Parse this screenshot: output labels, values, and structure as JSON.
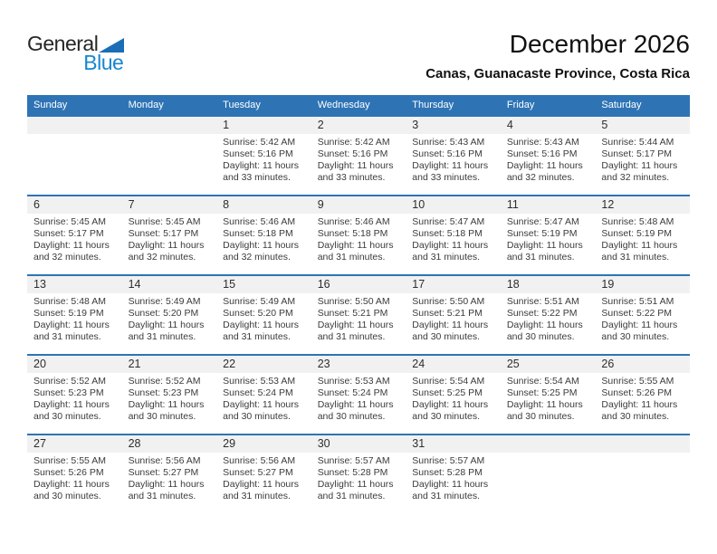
{
  "logo": {
    "line1": "General",
    "line2": "Blue"
  },
  "header": {
    "title": "December 2026",
    "subtitle": "Canas, Guanacaste Province, Costa Rica"
  },
  "calendar": {
    "day_headers": [
      "Sunday",
      "Monday",
      "Tuesday",
      "Wednesday",
      "Thursday",
      "Friday",
      "Saturday"
    ],
    "weeks": [
      [
        null,
        null,
        {
          "day": "1",
          "sunrise": "Sunrise: 5:42 AM",
          "sunset": "Sunset: 5:16 PM",
          "daylight1": "Daylight: 11 hours",
          "daylight2": "and 33 minutes."
        },
        {
          "day": "2",
          "sunrise": "Sunrise: 5:42 AM",
          "sunset": "Sunset: 5:16 PM",
          "daylight1": "Daylight: 11 hours",
          "daylight2": "and 33 minutes."
        },
        {
          "day": "3",
          "sunrise": "Sunrise: 5:43 AM",
          "sunset": "Sunset: 5:16 PM",
          "daylight1": "Daylight: 11 hours",
          "daylight2": "and 33 minutes."
        },
        {
          "day": "4",
          "sunrise": "Sunrise: 5:43 AM",
          "sunset": "Sunset: 5:16 PM",
          "daylight1": "Daylight: 11 hours",
          "daylight2": "and 32 minutes."
        },
        {
          "day": "5",
          "sunrise": "Sunrise: 5:44 AM",
          "sunset": "Sunset: 5:17 PM",
          "daylight1": "Daylight: 11 hours",
          "daylight2": "and 32 minutes."
        }
      ],
      [
        {
          "day": "6",
          "sunrise": "Sunrise: 5:45 AM",
          "sunset": "Sunset: 5:17 PM",
          "daylight1": "Daylight: 11 hours",
          "daylight2": "and 32 minutes."
        },
        {
          "day": "7",
          "sunrise": "Sunrise: 5:45 AM",
          "sunset": "Sunset: 5:17 PM",
          "daylight1": "Daylight: 11 hours",
          "daylight2": "and 32 minutes."
        },
        {
          "day": "8",
          "sunrise": "Sunrise: 5:46 AM",
          "sunset": "Sunset: 5:18 PM",
          "daylight1": "Daylight: 11 hours",
          "daylight2": "and 32 minutes."
        },
        {
          "day": "9",
          "sunrise": "Sunrise: 5:46 AM",
          "sunset": "Sunset: 5:18 PM",
          "daylight1": "Daylight: 11 hours",
          "daylight2": "and 31 minutes."
        },
        {
          "day": "10",
          "sunrise": "Sunrise: 5:47 AM",
          "sunset": "Sunset: 5:18 PM",
          "daylight1": "Daylight: 11 hours",
          "daylight2": "and 31 minutes."
        },
        {
          "day": "11",
          "sunrise": "Sunrise: 5:47 AM",
          "sunset": "Sunset: 5:19 PM",
          "daylight1": "Daylight: 11 hours",
          "daylight2": "and 31 minutes."
        },
        {
          "day": "12",
          "sunrise": "Sunrise: 5:48 AM",
          "sunset": "Sunset: 5:19 PM",
          "daylight1": "Daylight: 11 hours",
          "daylight2": "and 31 minutes."
        }
      ],
      [
        {
          "day": "13",
          "sunrise": "Sunrise: 5:48 AM",
          "sunset": "Sunset: 5:19 PM",
          "daylight1": "Daylight: 11 hours",
          "daylight2": "and 31 minutes."
        },
        {
          "day": "14",
          "sunrise": "Sunrise: 5:49 AM",
          "sunset": "Sunset: 5:20 PM",
          "daylight1": "Daylight: 11 hours",
          "daylight2": "and 31 minutes."
        },
        {
          "day": "15",
          "sunrise": "Sunrise: 5:49 AM",
          "sunset": "Sunset: 5:20 PM",
          "daylight1": "Daylight: 11 hours",
          "daylight2": "and 31 minutes."
        },
        {
          "day": "16",
          "sunrise": "Sunrise: 5:50 AM",
          "sunset": "Sunset: 5:21 PM",
          "daylight1": "Daylight: 11 hours",
          "daylight2": "and 31 minutes."
        },
        {
          "day": "17",
          "sunrise": "Sunrise: 5:50 AM",
          "sunset": "Sunset: 5:21 PM",
          "daylight1": "Daylight: 11 hours",
          "daylight2": "and 30 minutes."
        },
        {
          "day": "18",
          "sunrise": "Sunrise: 5:51 AM",
          "sunset": "Sunset: 5:22 PM",
          "daylight1": "Daylight: 11 hours",
          "daylight2": "and 30 minutes."
        },
        {
          "day": "19",
          "sunrise": "Sunrise: 5:51 AM",
          "sunset": "Sunset: 5:22 PM",
          "daylight1": "Daylight: 11 hours",
          "daylight2": "and 30 minutes."
        }
      ],
      [
        {
          "day": "20",
          "sunrise": "Sunrise: 5:52 AM",
          "sunset": "Sunset: 5:23 PM",
          "daylight1": "Daylight: 11 hours",
          "daylight2": "and 30 minutes."
        },
        {
          "day": "21",
          "sunrise": "Sunrise: 5:52 AM",
          "sunset": "Sunset: 5:23 PM",
          "daylight1": "Daylight: 11 hours",
          "daylight2": "and 30 minutes."
        },
        {
          "day": "22",
          "sunrise": "Sunrise: 5:53 AM",
          "sunset": "Sunset: 5:24 PM",
          "daylight1": "Daylight: 11 hours",
          "daylight2": "and 30 minutes."
        },
        {
          "day": "23",
          "sunrise": "Sunrise: 5:53 AM",
          "sunset": "Sunset: 5:24 PM",
          "daylight1": "Daylight: 11 hours",
          "daylight2": "and 30 minutes."
        },
        {
          "day": "24",
          "sunrise": "Sunrise: 5:54 AM",
          "sunset": "Sunset: 5:25 PM",
          "daylight1": "Daylight: 11 hours",
          "daylight2": "and 30 minutes."
        },
        {
          "day": "25",
          "sunrise": "Sunrise: 5:54 AM",
          "sunset": "Sunset: 5:25 PM",
          "daylight1": "Daylight: 11 hours",
          "daylight2": "and 30 minutes."
        },
        {
          "day": "26",
          "sunrise": "Sunrise: 5:55 AM",
          "sunset": "Sunset: 5:26 PM",
          "daylight1": "Daylight: 11 hours",
          "daylight2": "and 30 minutes."
        }
      ],
      [
        {
          "day": "27",
          "sunrise": "Sunrise: 5:55 AM",
          "sunset": "Sunset: 5:26 PM",
          "daylight1": "Daylight: 11 hours",
          "daylight2": "and 30 minutes."
        },
        {
          "day": "28",
          "sunrise": "Sunrise: 5:56 AM",
          "sunset": "Sunset: 5:27 PM",
          "daylight1": "Daylight: 11 hours",
          "daylight2": "and 31 minutes."
        },
        {
          "day": "29",
          "sunrise": "Sunrise: 5:56 AM",
          "sunset": "Sunset: 5:27 PM",
          "daylight1": "Daylight: 11 hours",
          "daylight2": "and 31 minutes."
        },
        {
          "day": "30",
          "sunrise": "Sunrise: 5:57 AM",
          "sunset": "Sunset: 5:28 PM",
          "daylight1": "Daylight: 11 hours",
          "daylight2": "and 31 minutes."
        },
        {
          "day": "31",
          "sunrise": "Sunrise: 5:57 AM",
          "sunset": "Sunset: 5:28 PM",
          "daylight1": "Daylight: 11 hours",
          "daylight2": "and 31 minutes."
        },
        null,
        null
      ]
    ]
  },
  "colors": {
    "header_bg": "#2E74B5",
    "divider": "#2E74B5",
    "band_bg": "#F1F1F1",
    "logo_blue": "#1787D0",
    "logo_triangle": "#1A6DB6",
    "text_dark": "#3B3B3B"
  }
}
